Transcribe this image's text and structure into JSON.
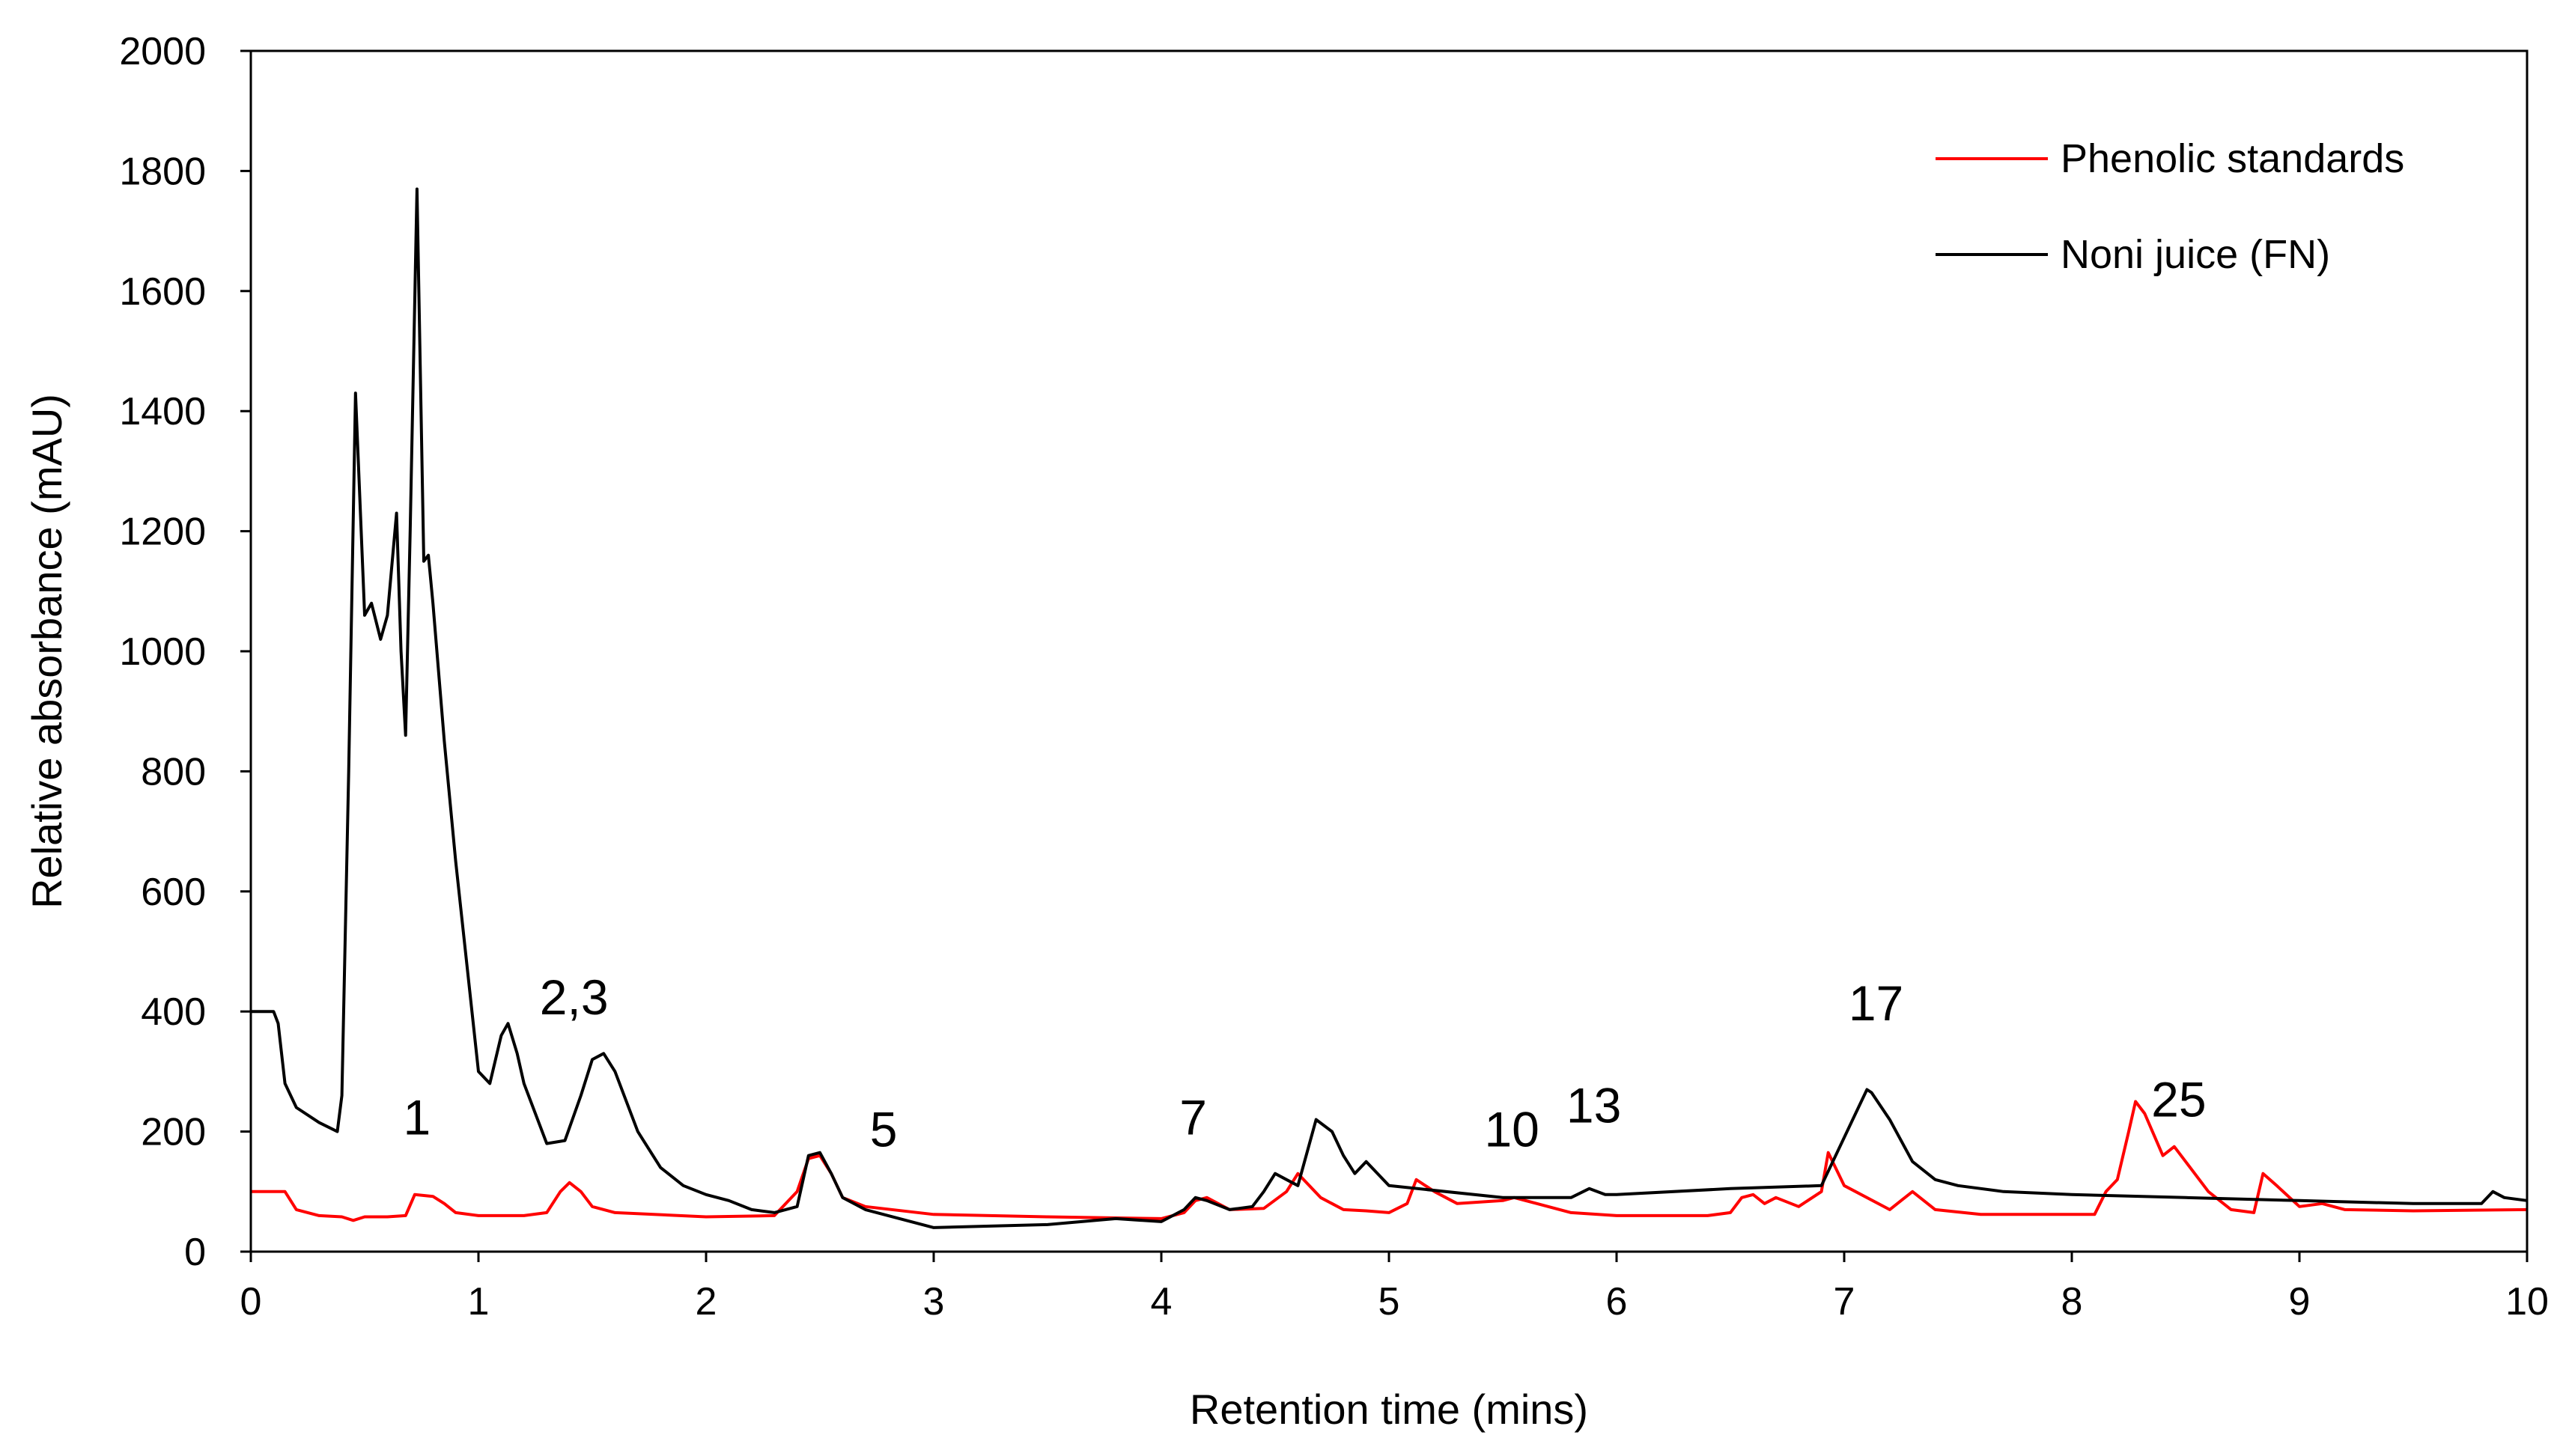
{
  "chart_data": {
    "type": "line",
    "title": "",
    "xlabel": "Retention time (mins)",
    "ylabel": "Relative absorbance (mAU)",
    "xlim": [
      0,
      10
    ],
    "ylim": [
      0,
      2000
    ],
    "xticks": [
      0,
      1,
      2,
      3,
      4,
      5,
      6,
      7,
      8,
      9,
      10
    ],
    "yticks": [
      0,
      200,
      400,
      600,
      800,
      1000,
      1200,
      1400,
      1600,
      1800,
      2000
    ],
    "grid": false,
    "legend_position": "top-right",
    "series": [
      {
        "name": "Phenolic standards",
        "color": "#ff0000",
        "x": [
          0,
          0.15,
          0.2,
          0.3,
          0.4,
          0.45,
          0.5,
          0.6,
          0.68,
          0.72,
          0.8,
          0.85,
          0.9,
          1.0,
          1.2,
          1.3,
          1.36,
          1.4,
          1.45,
          1.5,
          1.6,
          2.0,
          2.3,
          2.4,
          2.45,
          2.5,
          2.55,
          2.6,
          2.7,
          3.0,
          3.5,
          4.0,
          4.1,
          4.15,
          4.2,
          4.3,
          4.45,
          4.55,
          4.6,
          4.7,
          4.8,
          4.9,
          5.0,
          5.08,
          5.12,
          5.2,
          5.3,
          5.5,
          5.55,
          5.65,
          5.8,
          6.0,
          6.4,
          6.5,
          6.55,
          6.6,
          6.65,
          6.7,
          6.8,
          6.9,
          6.93,
          7.0,
          7.2,
          7.25,
          7.3,
          7.4,
          7.6,
          8.0,
          8.1,
          8.15,
          8.2,
          8.25,
          8.28,
          8.32,
          8.4,
          8.45,
          8.5,
          8.6,
          8.7,
          8.8,
          8.84,
          8.9,
          9.0,
          9.1,
          9.2,
          9.5,
          10.0
        ],
        "values": [
          100,
          100,
          70,
          60,
          58,
          52,
          58,
          58,
          60,
          95,
          92,
          80,
          65,
          60,
          60,
          65,
          100,
          115,
          100,
          75,
          65,
          58,
          60,
          100,
          155,
          160,
          130,
          90,
          75,
          62,
          58,
          55,
          65,
          85,
          90,
          70,
          72,
          100,
          130,
          90,
          70,
          68,
          65,
          80,
          120,
          100,
          80,
          85,
          90,
          80,
          65,
          60,
          60,
          65,
          90,
          95,
          80,
          90,
          75,
          100,
          165,
          110,
          70,
          85,
          100,
          70,
          62,
          62,
          62,
          100,
          120,
          200,
          250,
          230,
          160,
          175,
          150,
          100,
          70,
          65,
          130,
          110,
          75,
          80,
          70,
          68,
          70
        ]
      },
      {
        "name": "Noni juice (FN)",
        "color": "#000000",
        "x": [
          0,
          0.1,
          0.12,
          0.15,
          0.2,
          0.3,
          0.38,
          0.4,
          0.43,
          0.46,
          0.5,
          0.53,
          0.57,
          0.6,
          0.64,
          0.66,
          0.68,
          0.7,
          0.73,
          0.76,
          0.78,
          0.8,
          0.85,
          0.9,
          1.0,
          1.05,
          1.1,
          1.13,
          1.17,
          1.2,
          1.3,
          1.38,
          1.45,
          1.5,
          1.55,
          1.6,
          1.7,
          1.8,
          1.9,
          2.0,
          2.1,
          2.2,
          2.3,
          2.4,
          2.45,
          2.5,
          2.55,
          2.6,
          2.7,
          2.8,
          2.9,
          3.0,
          3.5,
          3.8,
          4.0,
          4.1,
          4.15,
          4.2,
          4.3,
          4.4,
          4.45,
          4.5,
          4.55,
          4.6,
          4.68,
          4.75,
          4.8,
          4.85,
          4.9,
          5.0,
          5.5,
          5.8,
          5.88,
          5.95,
          6.0,
          6.5,
          6.9,
          7.05,
          7.1,
          7.12,
          7.2,
          7.3,
          7.4,
          7.5,
          7.7,
          8.0,
          8.5,
          9.0,
          9.5,
          9.8,
          9.85,
          9.9,
          10.0
        ],
        "values": [
          400,
          400,
          380,
          280,
          240,
          215,
          200,
          260,
          800,
          1430,
          1060,
          1080,
          1020,
          1060,
          1230,
          1000,
          860,
          1200,
          1770,
          1150,
          1160,
          1080,
          850,
          650,
          300,
          280,
          360,
          380,
          330,
          280,
          180,
          185,
          260,
          320,
          330,
          300,
          200,
          140,
          110,
          95,
          85,
          70,
          65,
          75,
          160,
          165,
          130,
          90,
          70,
          60,
          50,
          40,
          45,
          55,
          50,
          70,
          90,
          85,
          70,
          75,
          100,
          130,
          120,
          110,
          220,
          200,
          160,
          130,
          150,
          110,
          90,
          90,
          105,
          95,
          95,
          105,
          110,
          230,
          270,
          265,
          220,
          150,
          120,
          110,
          100,
          95,
          90,
          85,
          80,
          80,
          100,
          90,
          85
        ]
      }
    ],
    "annotations": [
      {
        "text": "1",
        "x": 0.73,
        "y": 195
      },
      {
        "text": "2,3",
        "x": 1.42,
        "y": 395
      },
      {
        "text": "5",
        "x": 2.78,
        "y": 175
      },
      {
        "text": "7",
        "x": 4.14,
        "y": 195
      },
      {
        "text": "10",
        "x": 5.54,
        "y": 175
      },
      {
        "text": "13",
        "x": 5.9,
        "y": 215
      },
      {
        "text": "17",
        "x": 7.14,
        "y": 385
      },
      {
        "text": "25",
        "x": 8.47,
        "y": 225
      }
    ]
  }
}
